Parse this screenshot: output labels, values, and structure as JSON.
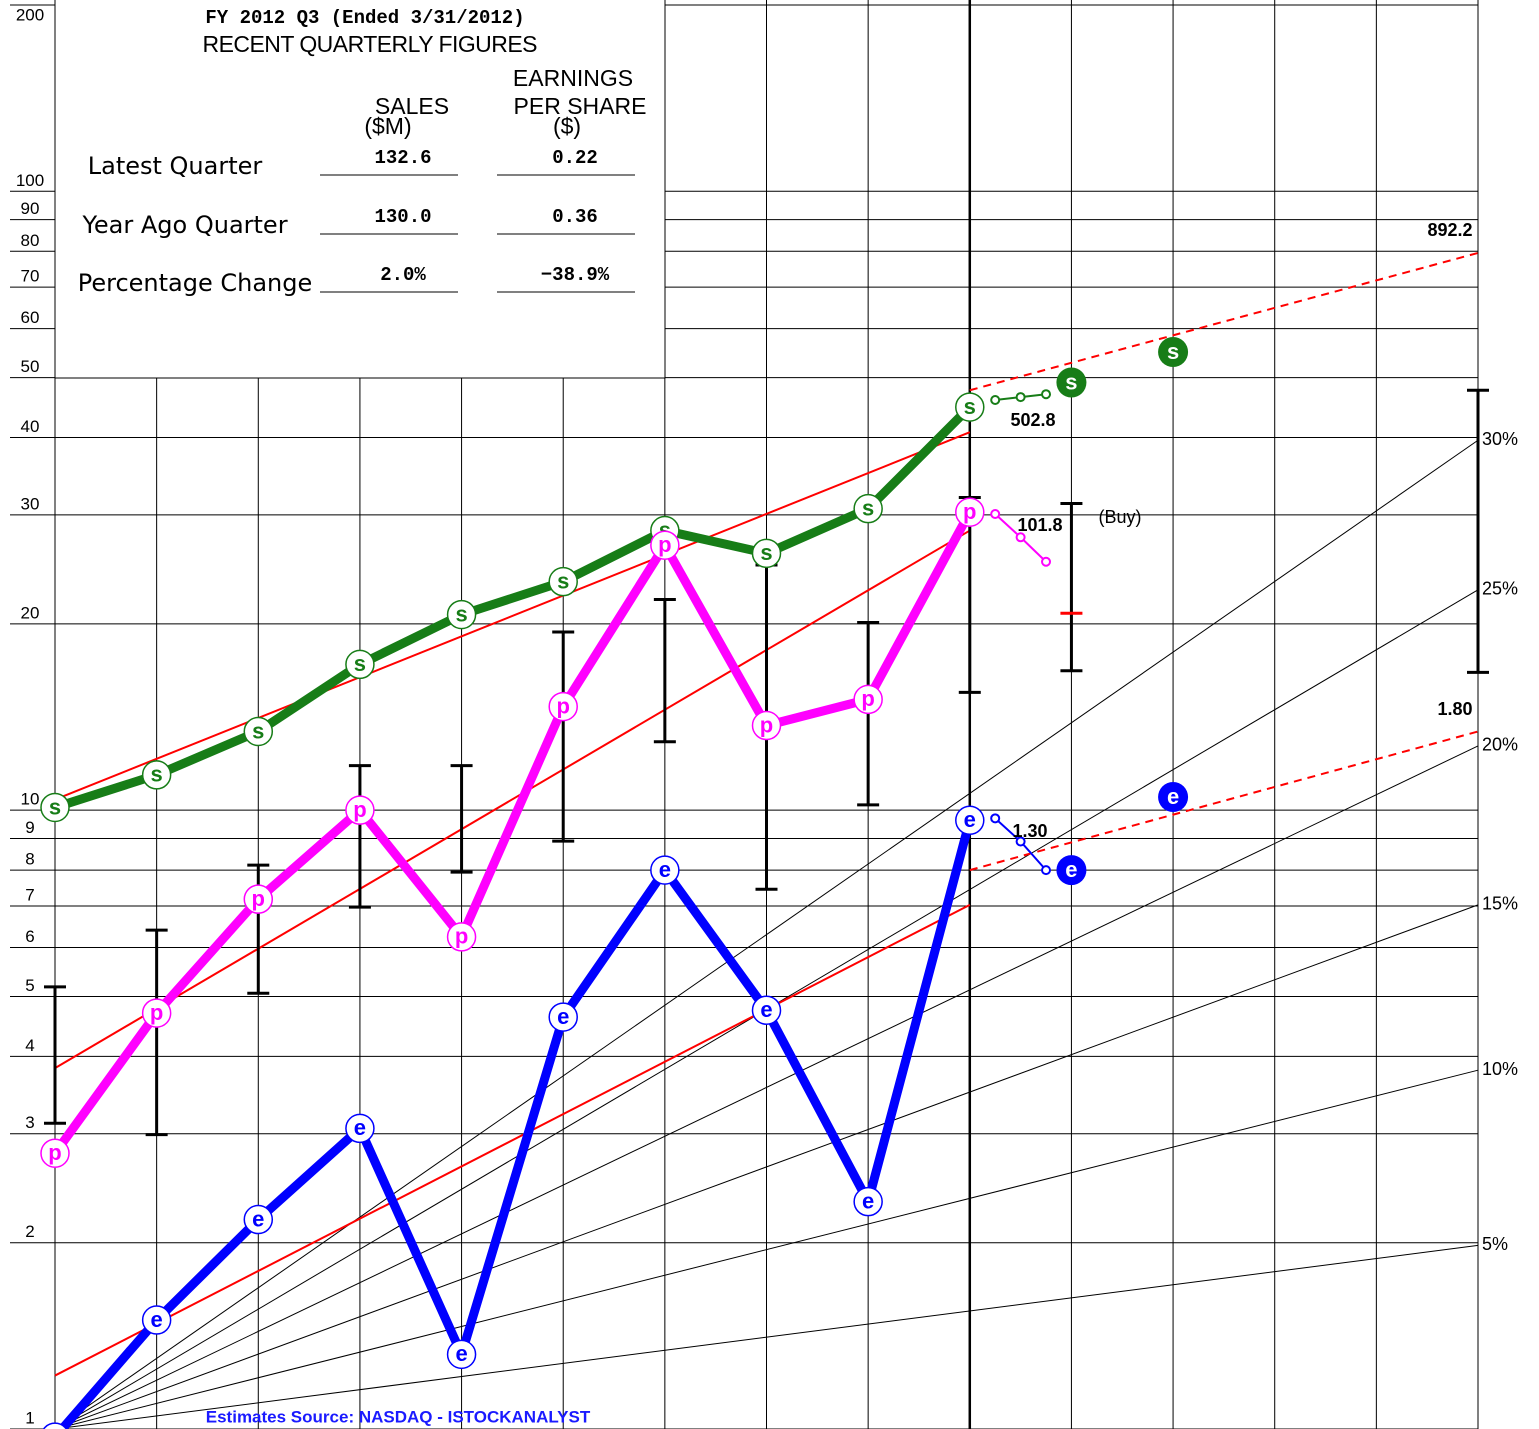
{
  "chart_data": {
    "type": "line",
    "ylim": [
      1,
      200
    ],
    "xlim": [
      0,
      14
    ],
    "log_y": true,
    "grid": true,
    "yticks": [
      1,
      2,
      3,
      4,
      5,
      6,
      7,
      8,
      9,
      10,
      20,
      30,
      40,
      50,
      60,
      70,
      80,
      90,
      100,
      200
    ],
    "series": [
      {
        "marker": "s",
        "color": "#177d17",
        "x": [
          0,
          1,
          2,
          3,
          4,
          5,
          6,
          7,
          8,
          9
        ],
        "values": [
          10.1,
          11.4,
          13.4,
          17.2,
          20.7,
          23.4,
          28.3,
          26.0,
          30.7,
          44.8
        ],
        "estimates": {
          "x": [
            9.25,
            9.5,
            9.75
          ],
          "values": [
            46.0,
            46.5,
            47.0
          ]
        },
        "forecast": {
          "x": [
            10,
            11
          ],
          "values": [
            49.1,
            55.0
          ]
        }
      },
      {
        "marker": "p",
        "color": "#ff00ff",
        "x": [
          0,
          1,
          2,
          3,
          4,
          5,
          6,
          7,
          8,
          9
        ],
        "values": [
          2.79,
          4.7,
          7.18,
          10.0,
          6.24,
          14.7,
          26.8,
          13.7,
          15.1,
          30.3
        ],
        "estimates": {
          "x": [
            9.25,
            9.5,
            9.75
          ],
          "values": [
            30.1,
            27.6,
            25.2
          ]
        }
      },
      {
        "marker": "e",
        "color": "#0000ff",
        "x": [
          0,
          1,
          2,
          3,
          4,
          5,
          6,
          7,
          8,
          9
        ],
        "values": [
          0.97,
          1.5,
          2.18,
          3.06,
          1.32,
          4.63,
          8.0,
          4.75,
          2.33,
          9.63
        ],
        "estimates": {
          "x": [
            9.25,
            9.5,
            9.75
          ],
          "values": [
            9.7,
            8.9,
            8.0
          ]
        },
        "forecast": {
          "x": [
            10,
            11
          ],
          "values": [
            8.0,
            10.5
          ]
        }
      }
    ],
    "price_ranges": {
      "color": "#000000",
      "x": [
        0,
        1,
        2,
        3,
        4,
        5,
        6,
        7,
        8,
        9,
        10,
        14
      ],
      "high": [
        5.18,
        6.4,
        8.15,
        11.8,
        11.8,
        19.4,
        21.9,
        24.9,
        20.1,
        32.0,
        31.3,
        47.7
      ],
      "low": [
        3.12,
        2.99,
        5.06,
        6.97,
        7.94,
        8.91,
        12.9,
        7.45,
        10.2,
        15.5,
        16.8,
        16.7
      ]
    },
    "buy_point": {
      "x": 10,
      "value": 20.8,
      "color": "#ff0000"
    },
    "trend_lines": [
      {
        "color": "#ff0000",
        "x": [
          0,
          9
        ],
        "values": [
          10.4,
          40.8
        ]
      },
      {
        "color": "#ff0000",
        "x": [
          0,
          9
        ],
        "values": [
          3.83,
          28.3
        ]
      },
      {
        "color": "#ff0000",
        "x": [
          0,
          9
        ],
        "values": [
          1.22,
          7.03
        ]
      },
      {
        "color": "#ff0000",
        "dashed": true,
        "x": [
          9,
          14
        ],
        "values": [
          47.7,
          79.5
        ]
      },
      {
        "color": "#ff0000",
        "dashed": true,
        "x": [
          9,
          14
        ],
        "values": [
          8.0,
          13.4
        ]
      }
    ],
    "growth_lines": [
      {
        "label": "30%",
        "x": [
          0,
          14
        ],
        "values": [
          1,
          39.6
        ]
      },
      {
        "label": "25%",
        "x": [
          0,
          14
        ],
        "values": [
          1,
          22.7
        ]
      },
      {
        "label": "20%",
        "x": [
          0,
          14
        ],
        "values": [
          1,
          12.7
        ]
      },
      {
        "label": "15%",
        "x": [
          0,
          14
        ],
        "values": [
          1,
          7.03
        ]
      },
      {
        "label": "10%",
        "x": [
          0,
          14
        ],
        "values": [
          1,
          3.8
        ]
      },
      {
        "label": "5%",
        "x": [
          0,
          14
        ],
        "values": [
          1,
          1.98
        ]
      }
    ],
    "annotations": [
      "892.2",
      "502.8",
      "101.8",
      "(Buy)",
      "1.30",
      "1.80"
    ],
    "source": "Estimates Source: NASDAQ - ISTOCKANALYST",
    "source_color": "#1a1aff"
  },
  "figures": {
    "title": "FY 2012 Q3 (Ended 3/31/2012)",
    "subtitle": "RECENT QUARTERLY FIGURES",
    "headers": [
      [
        "SALES",
        "($M)"
      ],
      [
        "EARNINGS",
        "PER SHARE",
        "($)"
      ]
    ],
    "rows": [
      [
        "Latest Quarter",
        "132.6",
        "0.22"
      ],
      [
        "Year Ago Quarter",
        "130.0",
        "0.36"
      ],
      [
        "Percentage Change",
        "2.0%",
        "−38.9%"
      ]
    ]
  }
}
